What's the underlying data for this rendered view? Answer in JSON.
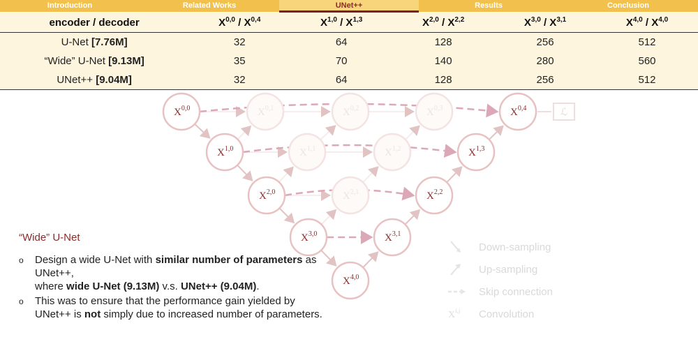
{
  "nav": {
    "items": [
      "Introduction",
      "Related Works",
      "UNet++",
      "Results",
      "Conclusion"
    ],
    "active_index": 2,
    "accent": "#f2c14d",
    "active_color": "#8b2b2b"
  },
  "params_table": {
    "header": {
      "label": "encoder / decoder",
      "columns": [
        {
          "main": "X",
          "sup": "0,0",
          "sep": " / X",
          "sup2": "0,4"
        },
        {
          "main": "X",
          "sup": "1,0",
          "sep": " / X",
          "sup2": "1,3"
        },
        {
          "main": "X",
          "sup": "2,0",
          "sep": " / X",
          "sup2": "2,2"
        },
        {
          "main": "X",
          "sup": "3,0",
          "sep": " / X",
          "sup2": "3,1"
        },
        {
          "main": "X",
          "sup": "4,0",
          "sep": " / X",
          "sup2": "4,0"
        }
      ]
    },
    "rows": [
      {
        "name": "U-Net ",
        "params": "[7.76M]",
        "values": [
          "32",
          "64",
          "128",
          "256",
          "512"
        ]
      },
      {
        "name": "“Wide” U-Net ",
        "params": "[9.13M]",
        "values": [
          "35",
          "70",
          "140",
          "280",
          "560"
        ]
      },
      {
        "name": "UNet++ ",
        "params": "[9.04M]",
        "values": [
          "32",
          "64",
          "128",
          "256",
          "512"
        ]
      }
    ]
  },
  "diagram": {
    "node_symbol": "X",
    "active_nodes": [
      {
        "label": "0,0"
      },
      {
        "label": "1,0"
      },
      {
        "label": "2,0"
      },
      {
        "label": "3,0"
      },
      {
        "label": "4,0"
      },
      {
        "label": "3,1"
      },
      {
        "label": "2,2"
      },
      {
        "label": "1,3"
      },
      {
        "label": "0,4"
      }
    ],
    "faded_nodes": [
      {
        "label": "0,1"
      },
      {
        "label": "0,2"
      },
      {
        "label": "0,3"
      },
      {
        "label": "1,1"
      },
      {
        "label": "1,2"
      },
      {
        "label": "2,1"
      }
    ],
    "loss_label": "ℒ",
    "colors": {
      "node_stroke": "#e8c2c2",
      "node_text": "#8b2b2b",
      "faded": "#f3e3e3",
      "skip": "#dca8b8"
    }
  },
  "panel": {
    "title": "“Wide” U-Net",
    "bullets": [
      [
        {
          "t": "Design a wide U-Net with ",
          "b": false
        },
        {
          "t": "similar number of parameters",
          "b": true
        },
        {
          "t": " as UNet++,",
          "b": false
        },
        {
          "t": "\nwhere ",
          "b": false
        },
        {
          "t": "wide U-Net (9.13M)",
          "b": true
        },
        {
          "t": " v.s. ",
          "b": false
        },
        {
          "t": "UNet++ (9.04M)",
          "b": true
        },
        {
          "t": ".",
          "b": false
        }
      ],
      [
        {
          "t": "This was to ensure that the performance gain yielded by UNet++ is ",
          "b": false
        },
        {
          "t": "not",
          "b": true
        },
        {
          "t": " simply due to increased number of parameters.",
          "b": false
        }
      ]
    ],
    "bullet_marker": "o"
  },
  "legend": {
    "items": [
      {
        "label": "Down-sampling",
        "icon": "down-arrow-icon"
      },
      {
        "label": "Up-sampling",
        "icon": "up-arrow-icon"
      },
      {
        "label": "Skip connection",
        "icon": "dashed-arrow-icon"
      },
      {
        "label": "Convolution",
        "icon": "node-label-icon",
        "symbol": "X",
        "sup": "i,j"
      }
    ]
  }
}
